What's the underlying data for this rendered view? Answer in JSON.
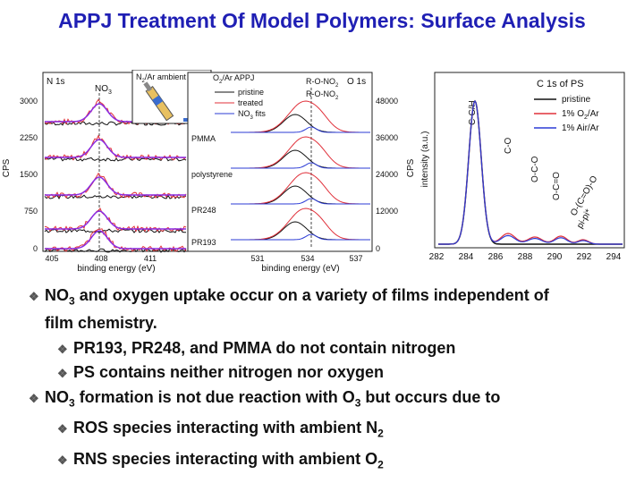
{
  "slide": {
    "title": "APPJ Treatment Of Model Polymers: Surface Analysis"
  },
  "n1s_panel": {
    "label": "N 1s",
    "peak_label": "NO",
    "peak_label_sub": "3",
    "yticks": [
      "3000",
      "2250",
      "1500",
      "750",
      "0"
    ],
    "xticks": [
      "405",
      "408",
      "411"
    ],
    "xlabel": "binding energy (eV)",
    "ylabel": "CPS"
  },
  "inset": {
    "label": "N",
    "label_sub": "2",
    "label_rest": "/Ar ambient"
  },
  "o1s_panel": {
    "label": "O 1s",
    "legend_title_a": "O",
    "legend_title_sub": "2",
    "legend_title_b": "/Ar APPJ",
    "legend": [
      "pristine",
      "treated",
      "NO"
    ],
    "legend_fits_sub": "3",
    "legend_fits_rest": " fits",
    "annot1": "R-O-NO",
    "annot1_sub": "2",
    "annot2": "R-O-NO",
    "annot2_sub": "2",
    "polymers": [
      "PMMA",
      "polystyrene",
      "PR248",
      "PR193"
    ],
    "yticks": [
      "48000",
      "36000",
      "24000",
      "12000",
      "0"
    ],
    "xticks": [
      "531",
      "534",
      "537"
    ],
    "xlabel": "binding energy (eV)",
    "ylabel": "CPS"
  },
  "c1s_panel": {
    "legend_title": "C 1s of PS",
    "legend": [
      {
        "text": "pristine",
        "color": "#111111"
      },
      {
        "text": "1% O",
        "sub": "2",
        "rest": "/Ar",
        "color": "#e0303a"
      },
      {
        "text": "1% Air/Ar",
        "color": "#2b3bd6"
      }
    ],
    "peak_labels": [
      "C-C/H",
      "C-O",
      "O-C-O",
      "O-C=O",
      "O-(C=O)-O",
      "pi-pi*"
    ],
    "xticks": [
      "282",
      "284",
      "286",
      "288",
      "290",
      "292",
      "294"
    ],
    "ylabel": "intensity (a.u.)"
  },
  "bullets": {
    "b1_a": "NO",
    "b1_sub": "3",
    "b1_b": " and oxygen uptake occur on a variety of films independent of",
    "b1_c": "film chemistry.",
    "b1_1": "PR193, PR248, and PMMA do not contain nitrogen",
    "b1_2": "PS contains neither nitrogen nor oxygen",
    "b2_a": "NO",
    "b2_sub": "3",
    "b2_b": " formation is not due reaction with O",
    "b2_sub2": "3",
    "b2_c": " but occurs due to",
    "b2_1a": "ROS species interacting with ambient N",
    "b2_1sub": "2",
    "b2_2a": "RNS species interacting with ambient O",
    "b2_2sub": "2"
  },
  "colors": {
    "title": "#1f1fb4",
    "pristine": "#111111",
    "treated": "#e0303a",
    "fits": "#2b3bd6",
    "purple": "#8a2be2"
  }
}
